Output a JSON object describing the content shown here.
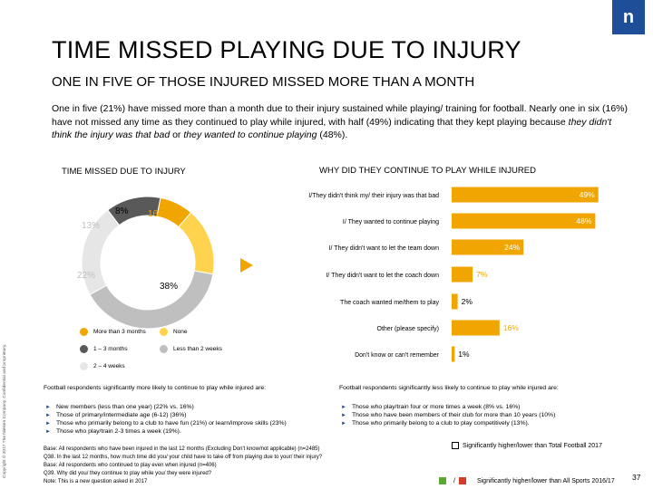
{
  "logo": {
    "text": "n"
  },
  "title": "TIME MISSED PLAYING DUE TO INJURY",
  "subtitle": "ONE IN FIVE OF THOSE INJURED MISSED MORE THAN A MONTH",
  "intro": {
    "part1": "One in five (21%) have missed more than a month due to their injury sustained while playing/ training for football. Nearly one in six (16%) have not missed any time as they continued to play while injured, with half (49%) indicating that they kept playing because ",
    "italic1": "they didn't think the injury was that bad",
    "part2": " or ",
    "italic2": "they wanted to continue playing",
    "part3": " (48%)."
  },
  "copyright": "Copyright © 2017 The Nielsen Company. Confidential and proprietary.",
  "colors": {
    "more_than_3_months": "#f0a500",
    "none": "#ffd34d",
    "one_to_three_months": "#595959",
    "less_than_2_weeks": "#bfbfbf",
    "two_to_four_weeks": "#e6e6e6",
    "bar": "#f0a500",
    "brand": "#1f4e99",
    "sig_green": "#5aa832",
    "sig_red": "#d33b2c"
  },
  "chart_data": [
    {
      "type": "pie",
      "title": "TIME MISSED DUE TO INJURY",
      "donut": true,
      "segments": [
        {
          "key": "more_than_3_months",
          "label": "More than 3 months",
          "value": 8,
          "display": "8%"
        },
        {
          "key": "none",
          "label": "None",
          "value": 16,
          "display": "16%"
        },
        {
          "key": "less_than_2_weeks",
          "label": "Less than 2 weeks",
          "value": 38,
          "display": "38%"
        },
        {
          "key": "two_to_four_weeks",
          "label": "2 – 4 weeks",
          "value": 22,
          "display": "22%"
        },
        {
          "key": "one_to_three_months",
          "label": "1 – 3 months",
          "value": 13,
          "display": "13%"
        }
      ],
      "legend_order": [
        "more_than_3_months",
        "none",
        "one_to_three_months",
        "less_than_2_weeks",
        "two_to_four_weeks"
      ]
    },
    {
      "type": "bar",
      "orientation": "horizontal",
      "title": "WHY DID THEY CONTINUE TO PLAY WHILE INJURED",
      "categories": [
        "I/They didn't think my/ their injury was that bad",
        "I/ They wanted to continue playing",
        "I/ They didn't want to let the team down",
        "I/ They didn't want to let the coach down",
        "The coach wanted me/them to play",
        "Other (please specify)",
        "Don't know or can't remember"
      ],
      "values": [
        49,
        48,
        24,
        7,
        2,
        16,
        1
      ],
      "labels": [
        "49%",
        "48%",
        "24%",
        "7%",
        "2%",
        "16%",
        "1%"
      ],
      "xlim": [
        0,
        50
      ]
    }
  ],
  "notes": {
    "left_title": "Football respondents significantly more likely to continue to play while injured are:",
    "left_items": [
      "New members (less than one year) (22% vs. 16%)",
      "Those of primary/intermediate age (6-12) (36%)",
      "Those who primarily belong to a club to have fun (21%) or learn/improve skills (23%)",
      "Those who play/train 2-3 times a week (19%)."
    ],
    "right_title": "Football respondents significantly less likely to continue to play while injured are:",
    "right_items": [
      "Those who play/train four or more times a week (8% vs. 16%)",
      "Those who have been members of their club for more than 10 years (10%)",
      "Those who primarily belong to a club to play competitively (13%)."
    ]
  },
  "base": [
    "Base: All respondents who have been injured in the last 12 months (Excluding Don't know/not applicable) (n=2485)",
    "Q38. In the last 12 months, how much time did you/ your child have to take off from playing due to your/ their injury?",
    "Base: All respondents who continued to play even when injured (n=406)",
    "Q39. Why did you/ they continue to play while you/ they were injured?",
    "Note: This is a new question asked in 2017"
  ],
  "significance_key": [
    "Significantly higher/lower than Total Football 2017",
    "Significantly higher/lower than All Sports 2016/17"
  ],
  "page_number": "37"
}
